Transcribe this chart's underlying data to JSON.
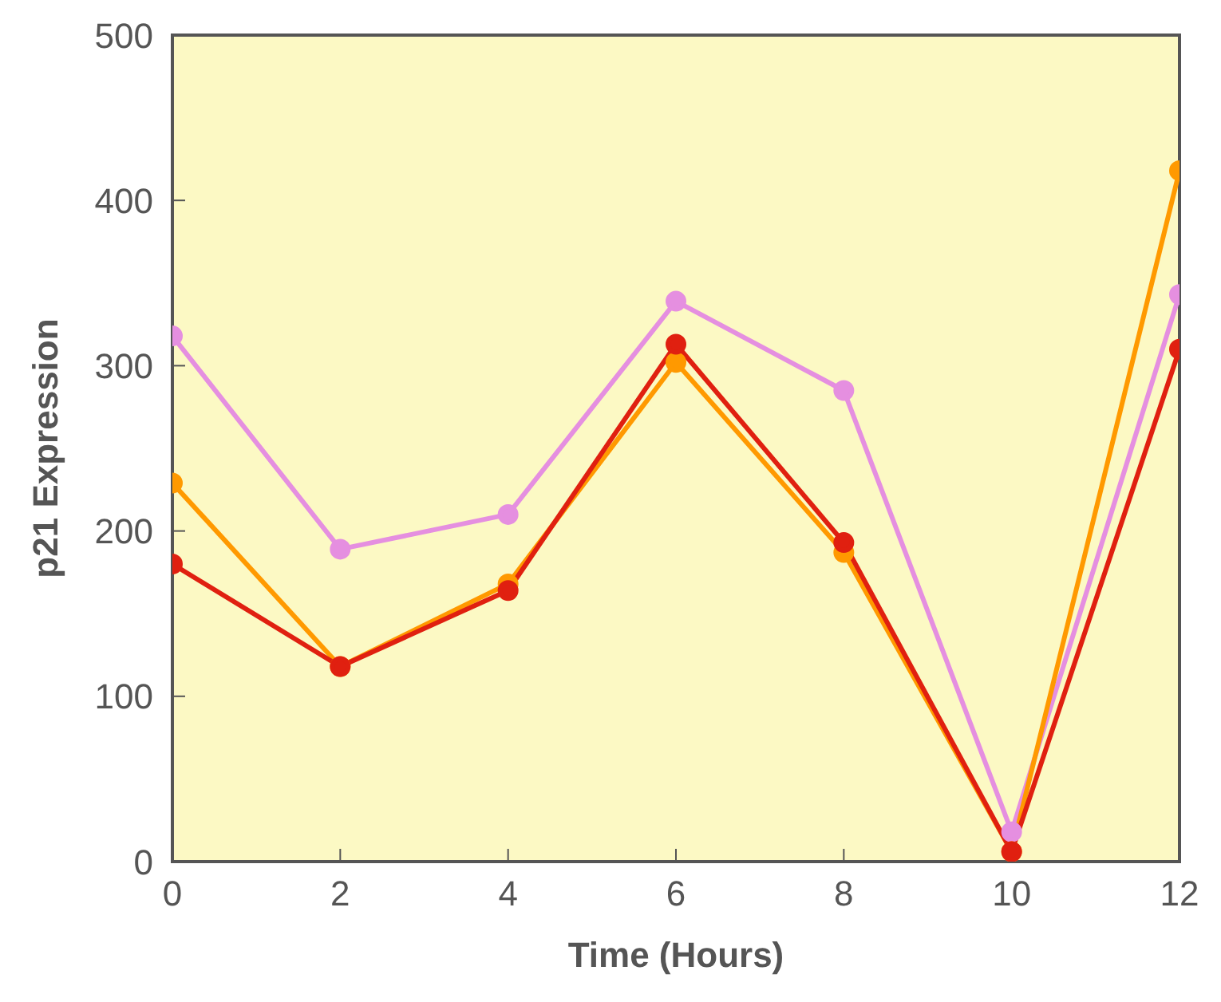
{
  "chart_data": {
    "type": "line",
    "xlabel": "Time (Hours)",
    "ylabel": "p21 Expression",
    "x": [
      0,
      2,
      4,
      6,
      8,
      10,
      12
    ],
    "series": [
      {
        "color": "#e58fe0",
        "values": [
          318,
          189,
          210,
          339,
          285,
          18,
          343
        ]
      },
      {
        "color": "#ff9900",
        "values": [
          229,
          118,
          168,
          302,
          187,
          6,
          418
        ]
      },
      {
        "color": "#e02010",
        "values": [
          180,
          118,
          164,
          313,
          193,
          6,
          310
        ]
      }
    ],
    "xlim": [
      0,
      12
    ],
    "xticks": [
      0,
      2,
      4,
      6,
      8,
      10,
      12
    ],
    "ylim": [
      0,
      500
    ],
    "yticks": [
      0,
      100,
      200,
      300,
      400,
      500
    ],
    "marker": "circle",
    "line_style": "solid",
    "legend": false
  }
}
